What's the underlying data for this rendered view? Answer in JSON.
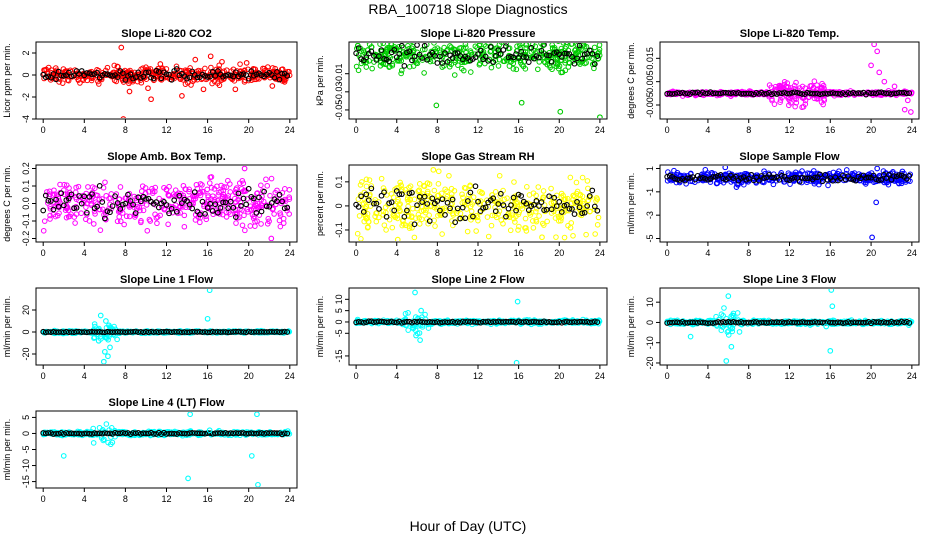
{
  "figure": {
    "title": "RBA_100718  Slope Diagnostics",
    "xlabel": "Hour of Day (UTC)",
    "x_ticks": [
      0,
      4,
      8,
      12,
      16,
      20,
      24
    ]
  },
  "chart_data": [
    {
      "type": "scatter",
      "title": "Slope Li-820 CO2",
      "ylabel": "Licor ppm per min.",
      "color": "#ff0000",
      "ylim": [
        -4,
        3
      ],
      "yticks": [
        -4,
        -2,
        0,
        2
      ],
      "ytick_labels": [
        "-4",
        "-2",
        "0",
        "2"
      ],
      "center": 0,
      "spread": 0.35,
      "outliers": [
        [
          7.6,
          2.5
        ],
        [
          7.8,
          -4.0
        ],
        [
          8.4,
          -1.5
        ],
        [
          10.2,
          -1.2
        ],
        [
          10.5,
          -2.2
        ],
        [
          11.4,
          1.0
        ],
        [
          13.5,
          -1.9
        ],
        [
          14.8,
          1.4
        ],
        [
          15.6,
          -1.3
        ],
        [
          16.3,
          1.7
        ],
        [
          17.4,
          1.2
        ],
        [
          18.7,
          -1.3
        ],
        [
          19.8,
          1.1
        ],
        [
          22.3,
          -1.0
        ]
      ]
    },
    {
      "type": "scatter",
      "title": "Slope Li-820 Pressure",
      "ylabel": "kPa per min.",
      "color": "#00cc00",
      "ylim": [
        -0.06,
        0.025
      ],
      "yticks": [
        -0.05,
        -0.03,
        -0.01
      ],
      "ytick_labels": [
        "-0.05",
        "-0.03",
        "-0.01"
      ],
      "center": 0.01,
      "spread": 0.008,
      "outliers": [
        [
          7.9,
          -0.045
        ],
        [
          16.3,
          -0.042
        ],
        [
          20.1,
          -0.052
        ],
        [
          24.0,
          -0.058
        ],
        [
          12.6,
          0.022
        ],
        [
          18.4,
          0.021
        ]
      ]
    },
    {
      "type": "scatter",
      "title": "Slope Li-820 Temp.",
      "ylabel": "degrees C per min.",
      "color": "#ff00ff",
      "ylim": [
        -0.011,
        0.022
      ],
      "yticks": [
        -0.005,
        0.005,
        0.015
      ],
      "ytick_labels": [
        "-0.005",
        "0.005",
        "0.015"
      ],
      "center": 0,
      "spread": 0.0004,
      "outliers": [
        [
          20.3,
          0.021
        ],
        [
          20.6,
          0.018
        ],
        [
          20.0,
          0.012
        ],
        [
          20.8,
          0.009
        ],
        [
          21.3,
          0.005
        ],
        [
          22.3,
          0.003
        ],
        [
          23.3,
          -0.007
        ],
        [
          23.9,
          -0.008
        ],
        [
          23.6,
          -0.003
        ]
      ]
    },
    {
      "type": "scatter",
      "title": "Slope Amb. Box Temp.",
      "ylabel": "degrees C per min.",
      "color": "#ff00ff",
      "ylim": [
        -0.22,
        0.22
      ],
      "yticks": [
        -0.2,
        -0.1,
        0.0,
        0.1,
        0.2
      ],
      "ytick_labels": [
        "-0.2",
        "-0.1",
        "0.0",
        "0.1",
        "0.2"
      ],
      "center": 0,
      "spread": 0.06,
      "outliers": [
        [
          19.6,
          0.2
        ],
        [
          22.2,
          -0.2
        ]
      ]
    },
    {
      "type": "scatter",
      "title": "Slope Gas Stream RH",
      "ylabel": "percent per min.",
      "color": "#ffff00",
      "ylim": [
        -0.15,
        0.17
      ],
      "yticks": [
        -0.1,
        0,
        0.1
      ],
      "ytick_labels": [
        "-0.1",
        "0",
        "0.1"
      ],
      "center": 0,
      "spread": 0.05,
      "outliers": [
        [
          7.6,
          0.15
        ],
        [
          4.1,
          -0.14
        ],
        [
          18.3,
          -0.13
        ]
      ]
    },
    {
      "type": "scatter",
      "title": "Slope Sample Flow",
      "ylabel": "ml/min per min.",
      "color": "#0000ff",
      "ylim": [
        -5.3,
        1.3
      ],
      "yticks": [
        -5,
        -3,
        -1,
        1
      ],
      "ytick_labels": [
        "-5",
        "-3",
        "-1",
        "1"
      ],
      "center": 0.2,
      "spread": 0.25,
      "outliers": [
        [
          20.1,
          -4.9
        ],
        [
          20.5,
          -1.9
        ],
        [
          20.6,
          1.0
        ],
        [
          5.7,
          1.1
        ],
        [
          6.8,
          -0.6
        ]
      ]
    },
    {
      "type": "scatter",
      "title": "Slope Line 1 Flow",
      "ylabel": "ml/min per min.",
      "color": "#00ffff",
      "ylim": [
        -30,
        40
      ],
      "yticks": [
        -20,
        0,
        20
      ],
      "ytick_labels": [
        "-20",
        "0",
        "20"
      ],
      "center": 0,
      "spread": 0.5,
      "outliers": [
        [
          5.9,
          -27
        ],
        [
          6.3,
          -22
        ],
        [
          5.6,
          15
        ],
        [
          6.1,
          10
        ],
        [
          6.5,
          -14
        ],
        [
          5.4,
          -8
        ],
        [
          6.0,
          -18
        ],
        [
          16.2,
          38
        ],
        [
          16.0,
          12
        ],
        [
          6.4,
          6
        ]
      ]
    },
    {
      "type": "scatter",
      "title": "Slope Line 2 Flow",
      "ylabel": "ml/min per min.",
      "color": "#00ffff",
      "ylim": [
        -19,
        15
      ],
      "yticks": [
        -15,
        -5,
        0,
        5,
        10
      ],
      "ytick_labels": [
        "-15",
        "-5",
        "0",
        "5",
        "10"
      ],
      "center": 0,
      "spread": 0.4,
      "outliers": [
        [
          5.9,
          -6
        ],
        [
          6.3,
          -8
        ],
        [
          5.8,
          13
        ],
        [
          6.4,
          5
        ],
        [
          15.8,
          -18
        ],
        [
          15.9,
          9
        ]
      ]
    },
    {
      "type": "scatter",
      "title": "Slope Line 3 Flow",
      "ylabel": "ml/min per min.",
      "color": "#00ffff",
      "ylim": [
        -21,
        17
      ],
      "yticks": [
        -20,
        -10,
        0,
        10
      ],
      "ytick_labels": [
        "-20",
        "-10",
        "0",
        "10"
      ],
      "center": 0,
      "spread": 0.5,
      "outliers": [
        [
          5.8,
          -19
        ],
        [
          6.0,
          13
        ],
        [
          6.3,
          -12
        ],
        [
          2.3,
          -7
        ],
        [
          16.0,
          -14
        ],
        [
          16.2,
          8
        ],
        [
          16.1,
          16
        ],
        [
          15.6,
          -2
        ]
      ]
    },
    {
      "type": "scatter",
      "title": "Slope Line 4 (LT) Flow",
      "ylabel": "ml/min per min.",
      "color": "#00ffff",
      "ylim": [
        -17,
        7
      ],
      "yticks": [
        -15,
        -10,
        -5,
        0,
        5
      ],
      "ytick_labels": [
        "-15",
        "-10",
        "-5",
        "0",
        "5"
      ],
      "center": 0,
      "spread": 0.3,
      "outliers": [
        [
          2.0,
          -7
        ],
        [
          14.1,
          -14
        ],
        [
          14.3,
          6
        ],
        [
          20.8,
          6
        ],
        [
          20.9,
          -16
        ],
        [
          16.2,
          1
        ],
        [
          20.3,
          -7
        ]
      ]
    }
  ]
}
